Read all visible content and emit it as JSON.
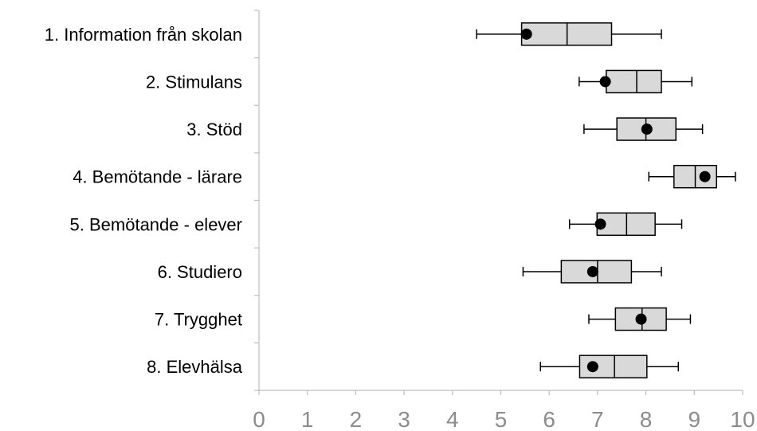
{
  "chart_data": {
    "type": "boxplot",
    "orientation": "horizontal",
    "title": "",
    "xlabel": "",
    "ylabel": "",
    "xlim": [
      0,
      10
    ],
    "x_ticks": [
      "0",
      "1",
      "2",
      "3",
      "4",
      "5",
      "6",
      "7",
      "8",
      "9",
      "10"
    ],
    "grid": false,
    "box_fill": "#d9d9d9",
    "marker_color": "#000000",
    "axis_color": "#bdbdbd",
    "tick_label_color": "#8c8c8c",
    "categories": [
      "1. Information från skolan",
      "2. Stimulans",
      "3. Stöd",
      "4. Bemötande - lärare",
      "5. Bemötande - elever",
      "6. Studiero",
      "7. Trygghet",
      "8. Elevhälsa"
    ],
    "series": [
      {
        "min": 4.5,
        "q1": 5.43,
        "median": 6.37,
        "q3": 7.29,
        "max": 8.32,
        "marker": 5.53
      },
      {
        "min": 6.62,
        "q1": 7.18,
        "median": 7.81,
        "q3": 8.32,
        "max": 8.95,
        "marker": 7.16
      },
      {
        "min": 6.72,
        "q1": 7.4,
        "median": 8.0,
        "q3": 8.62,
        "max": 9.17,
        "marker": 8.02
      },
      {
        "min": 8.06,
        "q1": 8.58,
        "median": 9.02,
        "q3": 9.46,
        "max": 9.85,
        "marker": 9.22
      },
      {
        "min": 6.42,
        "q1": 6.99,
        "median": 7.6,
        "q3": 8.19,
        "max": 8.74,
        "marker": 7.06
      },
      {
        "min": 5.46,
        "q1": 6.25,
        "median": 7.0,
        "q3": 7.7,
        "max": 8.32,
        "marker": 6.9
      },
      {
        "min": 6.82,
        "q1": 7.37,
        "median": 7.92,
        "q3": 8.42,
        "max": 8.92,
        "marker": 7.9
      },
      {
        "min": 5.82,
        "q1": 6.63,
        "median": 7.35,
        "q3": 8.02,
        "max": 8.67,
        "marker": 6.9
      }
    ]
  }
}
